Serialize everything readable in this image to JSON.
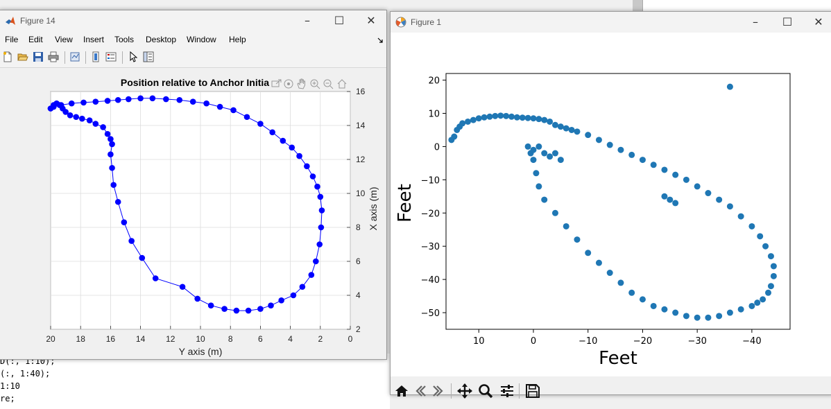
{
  "matlab_window": {
    "title": "Figure 14",
    "menu": [
      "File",
      "Edit",
      "View",
      "Insert",
      "Tools",
      "Desktop",
      "Window",
      "Help"
    ],
    "plot": {
      "title": "Position relative to Anchor Initia",
      "xlabel": "Y axis (m)",
      "ylabel": "X axis (m)",
      "xticks": [
        "20",
        "18",
        "16",
        "14",
        "12",
        "10",
        "8",
        "6",
        "4",
        "2",
        "0"
      ],
      "yticks": [
        "2",
        "4",
        "6",
        "8",
        "10",
        "12",
        "14",
        "16"
      ]
    }
  },
  "mpl_window": {
    "title": "Figure 1",
    "plot": {
      "xlabel": "Feet",
      "ylabel": "Feet",
      "xticks": [
        "10",
        "0",
        "−10",
        "−20",
        "−30",
        "−40"
      ],
      "yticks": [
        "20",
        "10",
        "0",
        "−10",
        "−20",
        "−30",
        "−40",
        "−50"
      ]
    }
  },
  "code_lines": [
    "D(:, 1:10);",
    "(:, 1:40);",
    "1:10",
    "re;"
  ],
  "chart_data": [
    {
      "type": "line",
      "title": "Position relative to Anchor Initia",
      "xlabel": "Y axis (m)",
      "ylabel": "X axis (m)",
      "xlim": [
        20,
        0
      ],
      "ylim": [
        2,
        16
      ],
      "grid": true,
      "color": "#0000ff",
      "x": [
        20,
        19.8,
        19.6,
        19.4,
        19.2,
        19.0,
        18.7,
        18.3,
        17.9,
        17.4,
        17.0,
        16.5,
        16.2,
        16.0,
        15.9,
        16.0,
        15.9,
        15.8,
        15.5,
        15.1,
        14.6,
        13.9,
        13.0,
        11.2,
        10.2,
        9.3,
        8.4,
        7.6,
        6.8,
        6.0,
        5.3,
        4.6,
        3.8,
        3.2,
        2.6,
        2.3,
        2.05,
        1.95,
        1.9,
        2.0,
        2.2,
        2.5,
        2.9,
        3.4,
        3.9,
        4.5,
        5.2,
        6.0,
        6.9,
        7.8,
        8.7,
        9.6,
        10.5,
        11.4,
        12.3,
        13.2,
        14.0,
        14.8,
        15.5,
        16.2,
        17.0,
        17.8,
        18.6,
        19.3,
        19.8,
        20.0
      ],
      "y": [
        15.0,
        15.2,
        15.3,
        15.2,
        15.0,
        14.8,
        14.6,
        14.5,
        14.4,
        14.3,
        14.1,
        13.9,
        13.5,
        13.2,
        12.9,
        12.3,
        11.5,
        10.5,
        9.5,
        8.3,
        7.2,
        6.2,
        5.0,
        4.5,
        3.8,
        3.4,
        3.2,
        3.1,
        3.1,
        3.2,
        3.4,
        3.7,
        4.0,
        4.5,
        5.2,
        6.0,
        7.0,
        8.0,
        9.0,
        9.8,
        10.4,
        11.0,
        11.6,
        12.2,
        12.7,
        13.1,
        13.6,
        14.1,
        14.5,
        14.9,
        15.1,
        15.3,
        15.4,
        15.5,
        15.55,
        15.6,
        15.6,
        15.55,
        15.5,
        15.45,
        15.4,
        15.35,
        15.3,
        15.2,
        15.1,
        15.0
      ]
    },
    {
      "type": "scatter",
      "xlabel": "Feet",
      "ylabel": "Feet",
      "xlim": [
        16,
        -47
      ],
      "ylim": [
        -55,
        22
      ],
      "grid": false,
      "color": "#1f77b4",
      "x": [
        15,
        14.5,
        14,
        13.5,
        13,
        12,
        11,
        10,
        9,
        8,
        7,
        6,
        5,
        4,
        3,
        2,
        1,
        0,
        -1,
        -2,
        -3,
        -4,
        -5,
        -6,
        -7,
        -8,
        -10,
        -12,
        -14,
        -16,
        -18,
        -20,
        -22,
        -24,
        -26,
        -28,
        -30,
        -32,
        -34,
        -36,
        -38,
        -40,
        -41.5,
        -42.5,
        -43.5,
        -44,
        -44,
        -43.5,
        -43,
        -42,
        -41,
        -40,
        -38,
        -36,
        -34,
        -32,
        -30,
        -28,
        -26,
        -24,
        -22,
        -20,
        -18,
        -16,
        -14,
        -12,
        -10,
        -8,
        -6,
        -4,
        -2,
        -1,
        -0.5,
        0,
        0.5,
        1,
        0,
        -1,
        -2,
        -3,
        -4,
        -5,
        -24,
        -25,
        -26,
        -36
      ],
      "y": [
        2,
        3,
        5,
        6,
        7,
        7.5,
        8,
        8.5,
        8.8,
        9,
        9.2,
        9.3,
        9.2,
        9,
        8.8,
        8.7,
        8.6,
        8.5,
        8.3,
        8,
        7.5,
        6.5,
        6,
        5.5,
        5,
        4.5,
        3.5,
        2,
        0.5,
        -1,
        -2.5,
        -4,
        -5.5,
        -7,
        -8.5,
        -10,
        -12,
        -14,
        -16,
        -18,
        -21,
        -24,
        -27,
        -30,
        -33,
        -36,
        -39,
        -42,
        -44,
        -46,
        -47,
        -48,
        -49,
        -50,
        -51,
        -51.5,
        -51.5,
        -51,
        -50,
        -49,
        -48,
        -46,
        -44,
        -41,
        -38,
        -35,
        -32,
        -28,
        -24,
        -20,
        -16,
        -12,
        -8,
        -4,
        -2,
        0,
        -1,
        0,
        -2,
        -3,
        -2,
        -4,
        -15,
        -16,
        -17,
        18
      ]
    }
  ]
}
